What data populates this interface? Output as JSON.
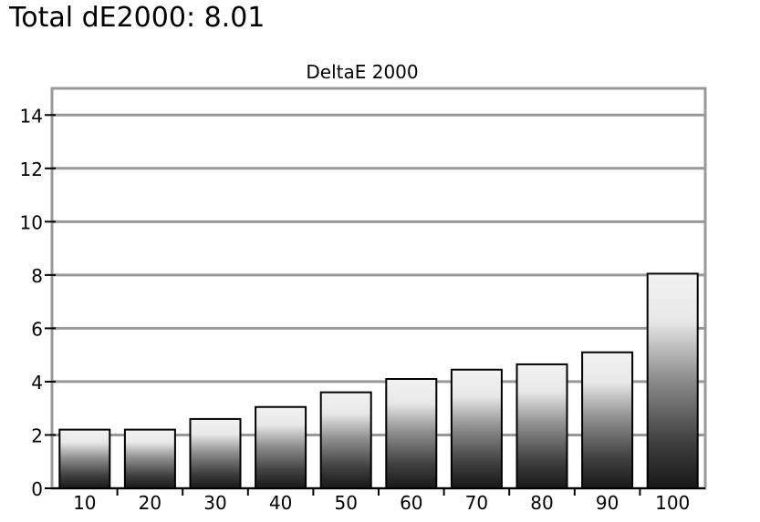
{
  "headline": "Total dE2000: 8.01",
  "chart_data": {
    "type": "bar",
    "title": "DeltaE 2000",
    "xlabel": "",
    "ylabel": "",
    "categories": [
      "10",
      "20",
      "30",
      "40",
      "50",
      "60",
      "70",
      "80",
      "90",
      "100"
    ],
    "values": [
      2.2,
      2.2,
      2.6,
      3.05,
      3.6,
      4.1,
      4.45,
      4.65,
      5.1,
      8.05
    ],
    "ylim": [
      0,
      15
    ],
    "yticks": [
      0,
      2,
      4,
      6,
      8,
      10,
      12,
      14
    ],
    "grid": true,
    "legend": "none"
  }
}
